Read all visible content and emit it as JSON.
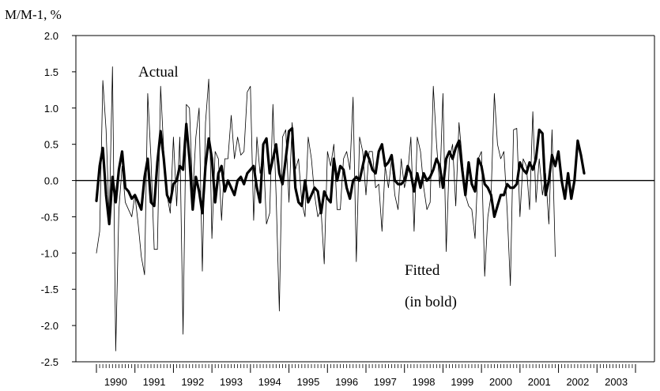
{
  "chart_data": {
    "type": "line",
    "ylabel": "M/M-1, %",
    "ylim": [
      -2.5,
      2.0
    ],
    "yticks": [
      "2.0",
      "1.5",
      "1.0",
      "0.5",
      "0.0",
      "-0.5",
      "-1.0",
      "-1.5",
      "-2.0",
      "-2.5"
    ],
    "xlim": [
      1990,
      2004
    ],
    "xtick_labels": [
      "1990",
      "1991",
      "1992",
      "1993",
      "1994",
      "1995",
      "1996",
      "1997",
      "1998",
      "1999",
      "2000",
      "2001",
      "2002",
      "2003"
    ],
    "zero_line": true,
    "annotations": {
      "actual": "Actual",
      "fitted_line1": "Fitted",
      "fitted_line2": "(in bold)"
    },
    "series": [
      {
        "name": "Actual",
        "style": "thin",
        "color": "#000000",
        "x_start": 1990.0,
        "step": 0.08333,
        "values": [
          -1.0,
          -0.7,
          1.38,
          0.7,
          -0.55,
          1.57,
          -2.35,
          -0.4,
          0.2,
          -0.3,
          -0.4,
          -0.5,
          -0.2,
          -0.6,
          -1.05,
          -1.3,
          1.2,
          0.3,
          -0.95,
          -0.95,
          1.3,
          0.4,
          -0.2,
          -0.45,
          0.6,
          -0.35,
          0.6,
          -2.12,
          1.05,
          1.0,
          -0.2,
          0.6,
          1.0,
          -1.25,
          0.8,
          1.4,
          -0.8,
          0.4,
          0.3,
          -0.55,
          0.3,
          0.3,
          0.9,
          0.3,
          0.6,
          0.35,
          0.4,
          1.22,
          1.3,
          -0.55,
          0.6,
          0.1,
          0.4,
          -0.6,
          -0.45,
          1.05,
          -0.2,
          -1.8,
          0.6,
          0.7,
          -0.3,
          0.8,
          0.15,
          0.3,
          -0.3,
          -0.5,
          0.6,
          0.3,
          -0.2,
          -0.5,
          -0.4,
          -1.15,
          0.4,
          0.2,
          0.5,
          -0.4,
          -0.4,
          0.3,
          0.4,
          0.15,
          1.15,
          -1.12,
          0.6,
          0.4,
          -0.2,
          0.4,
          0.4,
          -0.1,
          -0.05,
          -0.7,
          0.2,
          -0.1,
          0.3,
          -0.2,
          -0.4,
          0.3,
          -0.1,
          0.1,
          0.6,
          -0.7,
          0.6,
          0.4,
          -0.1,
          -0.4,
          -0.3,
          1.3,
          0.5,
          -0.1,
          1.2,
          -0.98,
          0.3,
          0.5,
          -0.35,
          0.8,
          0.3,
          -0.2,
          -0.35,
          -0.4,
          -0.8,
          0.3,
          0.4,
          -1.32,
          -0.5,
          -0.2,
          1.2,
          0.5,
          0.3,
          0.4,
          -0.4,
          -1.45,
          0.7,
          0.72,
          -0.5,
          0.3,
          0.2,
          -0.4,
          0.95,
          -0.3,
          0.3,
          -0.2,
          0.1,
          -0.6,
          0.7,
          -1.05
        ]
      },
      {
        "name": "Fitted",
        "style": "bold",
        "color": "#000000",
        "x_start": 1990.0,
        "step": 0.08333,
        "values": [
          -0.28,
          0.2,
          0.45,
          -0.2,
          -0.6,
          0.05,
          -0.3,
          0.15,
          0.4,
          -0.1,
          -0.15,
          -0.25,
          -0.2,
          -0.3,
          -0.4,
          0.05,
          0.3,
          -0.3,
          -0.35,
          0.25,
          0.68,
          0.3,
          -0.2,
          -0.3,
          -0.05,
          0.0,
          0.2,
          0.15,
          0.78,
          0.3,
          -0.4,
          0.05,
          -0.15,
          -0.45,
          0.2,
          0.58,
          0.3,
          -0.3,
          0.1,
          0.2,
          -0.15,
          0.0,
          -0.1,
          -0.2,
          0.0,
          0.05,
          -0.05,
          0.1,
          0.15,
          0.2,
          -0.1,
          -0.3,
          0.5,
          0.58,
          0.1,
          0.3,
          0.5,
          0.1,
          -0.05,
          0.3,
          0.68,
          0.72,
          -0.1,
          -0.3,
          -0.35,
          0.0,
          -0.3,
          -0.2,
          -0.1,
          -0.15,
          -0.45,
          -0.15,
          -0.25,
          -0.3,
          0.3,
          0.0,
          0.2,
          0.15,
          -0.1,
          -0.25,
          0.0,
          0.05,
          0.0,
          0.2,
          0.4,
          0.3,
          0.15,
          0.1,
          0.4,
          0.5,
          0.2,
          0.25,
          0.35,
          0.0,
          -0.05,
          -0.05,
          0.0,
          0.2,
          0.1,
          -0.15,
          0.1,
          -0.1,
          0.1,
          0.0,
          0.05,
          0.15,
          0.3,
          0.2,
          -0.1,
          0.3,
          0.4,
          0.3,
          0.45,
          0.55,
          0.15,
          -0.2,
          0.25,
          -0.05,
          -0.15,
          0.3,
          0.2,
          -0.05,
          -0.1,
          -0.2,
          -0.5,
          -0.35,
          -0.2,
          -0.2,
          -0.05,
          -0.1,
          -0.1,
          -0.05,
          0.25,
          0.15,
          0.1,
          0.25,
          0.15,
          0.3,
          0.7,
          0.65,
          -0.2,
          0.0,
          0.35,
          0.2,
          0.4,
          0.0,
          -0.25,
          0.1,
          -0.25,
          0.0,
          0.55,
          0.35,
          0.1
        ]
      }
    ]
  }
}
